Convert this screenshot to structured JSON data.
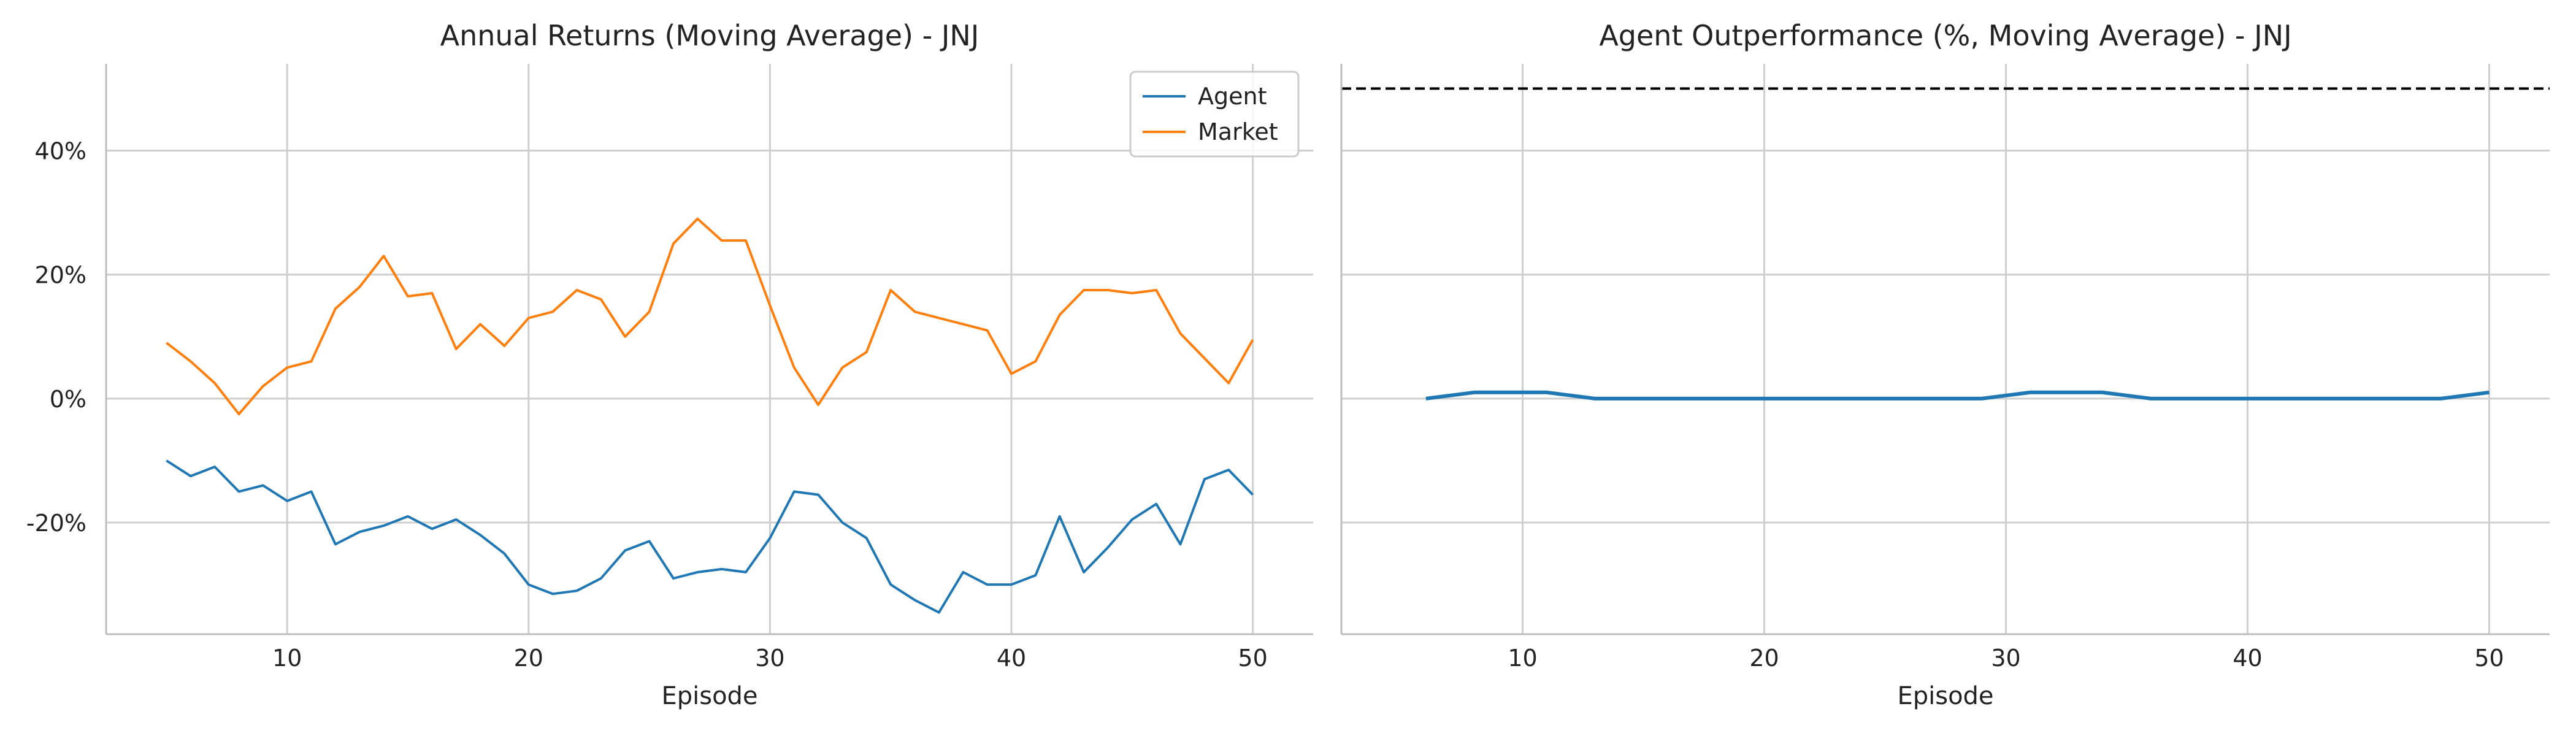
{
  "chart_data": [
    {
      "type": "line",
      "title": "Annual Returns (Moving Average) - JNJ",
      "xlabel": "Episode",
      "ylabel": "",
      "xlim": [
        2.5,
        52.5
      ],
      "ylim": [
        -38,
        54
      ],
      "x_ticks": [
        10,
        20,
        30,
        40,
        50
      ],
      "y_ticks": [
        -20,
        0,
        20,
        40
      ],
      "y_tick_labels": [
        "-20%",
        "0%",
        "20%",
        "40%"
      ],
      "grid": true,
      "legend": "top-right",
      "series": [
        {
          "name": "Agent",
          "color": "#1f77b4",
          "x": [
            5,
            6,
            7,
            8,
            9,
            10,
            11,
            12,
            13,
            14,
            15,
            16,
            17,
            18,
            19,
            20,
            21,
            22,
            23,
            24,
            25,
            26,
            27,
            28,
            29,
            30,
            31,
            32,
            33,
            34,
            35,
            36,
            37,
            38,
            39,
            40,
            41,
            42,
            43,
            44,
            45,
            46,
            47,
            48,
            49,
            50
          ],
          "values": [
            -10,
            -12.5,
            -11,
            -15,
            -14,
            -16.5,
            -15,
            -23.5,
            -21.5,
            -20.5,
            -19,
            -21,
            -19.5,
            -22,
            -25,
            -30,
            -31.5,
            -31,
            -29,
            -24.5,
            -23,
            -29,
            -28,
            -27.5,
            -28,
            -22.5,
            -15,
            -15.5,
            -20,
            -22.5,
            -30,
            -32.5,
            -34.5,
            -28,
            -30,
            -30,
            -28.5,
            -19,
            -28,
            -24,
            -19.5,
            -17,
            -23.5,
            -13,
            -11.5,
            -15.5
          ]
        },
        {
          "name": "Market",
          "color": "#ff7f0e",
          "x": [
            5,
            6,
            7,
            8,
            9,
            10,
            11,
            12,
            13,
            14,
            15,
            16,
            17,
            18,
            19,
            20,
            21,
            22,
            23,
            24,
            25,
            26,
            27,
            28,
            29,
            30,
            31,
            32,
            33,
            34,
            35,
            36,
            37,
            38,
            39,
            40,
            41,
            42,
            43,
            44,
            45,
            46,
            47,
            48,
            49,
            50
          ],
          "values": [
            9,
            6,
            2.5,
            -2.5,
            2,
            5,
            6,
            14.5,
            18,
            23,
            16.5,
            17,
            8,
            12,
            8.5,
            13,
            14,
            17.5,
            16,
            10,
            14,
            25,
            29,
            25.5,
            25.5,
            15,
            5,
            -1,
            5,
            7.5,
            17.5,
            14,
            13,
            12,
            11,
            4,
            6,
            13.5,
            17.5,
            17.5,
            17,
            17.5,
            10.5,
            6.5,
            2.5,
            9.5
          ]
        }
      ]
    },
    {
      "type": "line",
      "title": "Agent Outperformance (%, Moving Average) - JNJ",
      "xlabel": "Episode",
      "ylabel": "",
      "xlim": [
        2.5,
        52.5
      ],
      "ylim": [
        -38,
        54
      ],
      "x_ticks": [
        10,
        20,
        30,
        40,
        50
      ],
      "grid": true,
      "reference_line": {
        "y": 50,
        "style": "dashed",
        "color": "#000000"
      },
      "series": [
        {
          "color": "#1f77b4",
          "x": [
            6,
            7,
            8,
            9,
            10,
            11,
            12,
            13,
            14,
            15,
            16,
            17,
            18,
            19,
            20,
            21,
            22,
            23,
            24,
            25,
            26,
            27,
            28,
            29,
            30,
            31,
            32,
            33,
            34,
            35,
            36,
            37,
            38,
            39,
            40,
            41,
            42,
            43,
            44,
            45,
            46,
            47,
            48,
            49,
            50
          ],
          "values": [
            0,
            0.5,
            1,
            1,
            1,
            1,
            0.5,
            0,
            0,
            0,
            0,
            0,
            0,
            0,
            0,
            0,
            0,
            0,
            0,
            0,
            0,
            0,
            0,
            0,
            0.5,
            1,
            1,
            1,
            1,
            0.5,
            0,
            0,
            0,
            0,
            0,
            0,
            0,
            0,
            0,
            0,
            0,
            0,
            0,
            0.5,
            1
          ]
        }
      ]
    }
  ]
}
